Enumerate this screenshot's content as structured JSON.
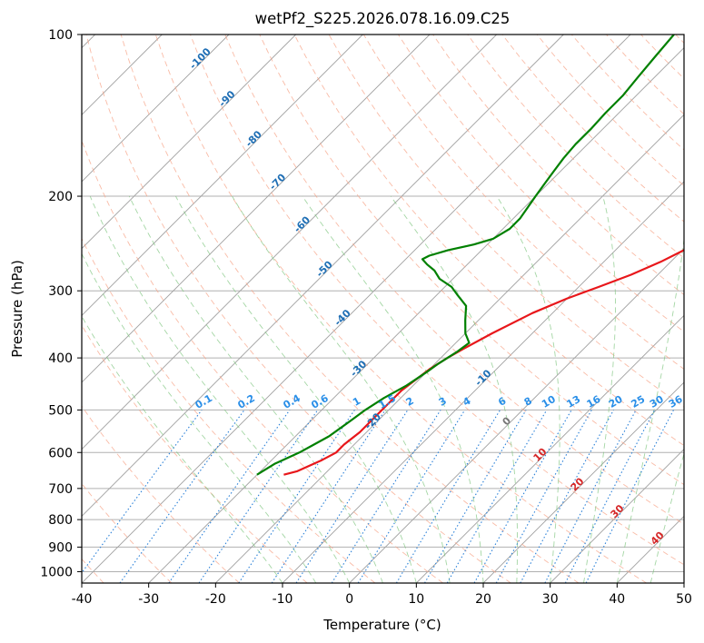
{
  "chart_data": {
    "type": "line",
    "title": "wetPf2_S225.2026.078.16.09.C25",
    "xlabel": "Temperature (°C)",
    "ylabel": "Pressure (hPa)",
    "xlim": [
      -40,
      50
    ],
    "ylim": [
      1050,
      100
    ],
    "x_ticks": [
      "-40",
      "-30",
      "-20",
      "-10",
      "0",
      "10",
      "20",
      "30",
      "40",
      "50"
    ],
    "y_ticks": [
      "100",
      "200",
      "300",
      "400",
      "500",
      "600",
      "700",
      "800",
      "900",
      "1000"
    ],
    "skew_deg": 45,
    "series": [
      {
        "name": "Temperature",
        "color": "#e8171b",
        "points": [
          [
            -26.0,
            660
          ],
          [
            -24.5,
            650
          ],
          [
            -22.5,
            620
          ],
          [
            -21.5,
            600
          ],
          [
            -21.5,
            580
          ],
          [
            -21.0,
            550
          ],
          [
            -21.0,
            500
          ],
          [
            -21.0,
            460
          ],
          [
            -20.0,
            420
          ],
          [
            -19.0,
            400
          ],
          [
            -18.0,
            385
          ],
          [
            -16.0,
            360
          ],
          [
            -13.0,
            330
          ],
          [
            -10.0,
            310
          ],
          [
            -7.0,
            295
          ],
          [
            -4.0,
            280
          ],
          [
            -1.5,
            265
          ],
          [
            0.5,
            250
          ],
          [
            1.2,
            240
          ],
          [
            1.8,
            225
          ],
          [
            2.0,
            210
          ],
          [
            2.2,
            195
          ],
          [
            2.5,
            180
          ],
          [
            2.5,
            165
          ],
          [
            2.3,
            150
          ],
          [
            2.0,
            140
          ],
          [
            1.3,
            130
          ],
          [
            0.5,
            120
          ],
          [
            0.0,
            113
          ],
          [
            -0.5,
            107
          ],
          [
            -1.0,
            100
          ]
        ]
      },
      {
        "name": "Dewpoint",
        "color": "#008000",
        "points": [
          [
            -30.0,
            660
          ],
          [
            -29.0,
            630
          ],
          [
            -27.0,
            600
          ],
          [
            -26.0,
            580
          ],
          [
            -25.0,
            560
          ],
          [
            -24.5,
            540
          ],
          [
            -24.0,
            520
          ],
          [
            -23.5,
            500
          ],
          [
            -22.5,
            475
          ],
          [
            -21.0,
            450
          ],
          [
            -20.0,
            425
          ],
          [
            -19.5,
            410
          ],
          [
            -18.5,
            390
          ],
          [
            -18.0,
            375
          ],
          [
            -20.0,
            360
          ],
          [
            -22.0,
            340
          ],
          [
            -24.0,
            320
          ],
          [
            -27.0,
            305
          ],
          [
            -29.0,
            295
          ],
          [
            -32.0,
            285
          ],
          [
            -34.0,
            275
          ],
          [
            -36.0,
            268
          ],
          [
            -37.5,
            262
          ],
          [
            -37.0,
            258
          ],
          [
            -35.0,
            252
          ],
          [
            -32.0,
            246
          ],
          [
            -30.0,
            240
          ],
          [
            -29.0,
            230
          ],
          [
            -29.0,
            220
          ],
          [
            -29.5,
            210
          ],
          [
            -30.0,
            200
          ],
          [
            -30.5,
            190
          ],
          [
            -31.0,
            180
          ],
          [
            -31.5,
            170
          ],
          [
            -31.8,
            160
          ],
          [
            -31.8,
            150
          ],
          [
            -32.0,
            140
          ],
          [
            -32.0,
            130
          ],
          [
            -32.5,
            120
          ],
          [
            -33.0,
            110
          ],
          [
            -33.5,
            100
          ]
        ]
      }
    ],
    "dry_adiabats_theta_c": [
      -40,
      -30,
      -20,
      -10,
      0,
      10,
      20,
      30,
      40,
      50,
      60,
      70,
      80,
      90,
      100,
      110,
      120,
      130,
      140,
      150,
      160,
      170,
      180,
      190,
      200
    ],
    "moist_adiabats_theta_c": [
      -10,
      -5,
      0,
      5,
      10,
      15,
      20,
      25,
      30,
      35,
      40,
      45
    ],
    "mixing_ratio_lines": [
      "0.1",
      "0.2",
      "0.4",
      "0.6",
      "1",
      "1.5",
      "2",
      "3",
      "4",
      "6",
      "8",
      "10",
      "13",
      "16",
      "20",
      "25",
      "30",
      "36"
    ],
    "isotherm_labels_blue": [
      "-100",
      "-90",
      "-80",
      "-70",
      "-60",
      "-50",
      "-40",
      "-30",
      "-20",
      "-10"
    ],
    "isotherm_label_zero": "0",
    "isotherm_labels_red": [
      "10",
      "20",
      "30",
      "40"
    ],
    "colors": {
      "isobar": "#b0b0b0",
      "isotherm": "#a0a0a0",
      "dry_adiabat": "#f7a488",
      "moist_adiabat": "#7dc47d",
      "mixing_ratio": "#2a80d8",
      "label_blue": "#1f6fb5",
      "label_red": "#d62728",
      "label_zero": "#777777",
      "mixing_label": "#2a8fe8"
    }
  }
}
